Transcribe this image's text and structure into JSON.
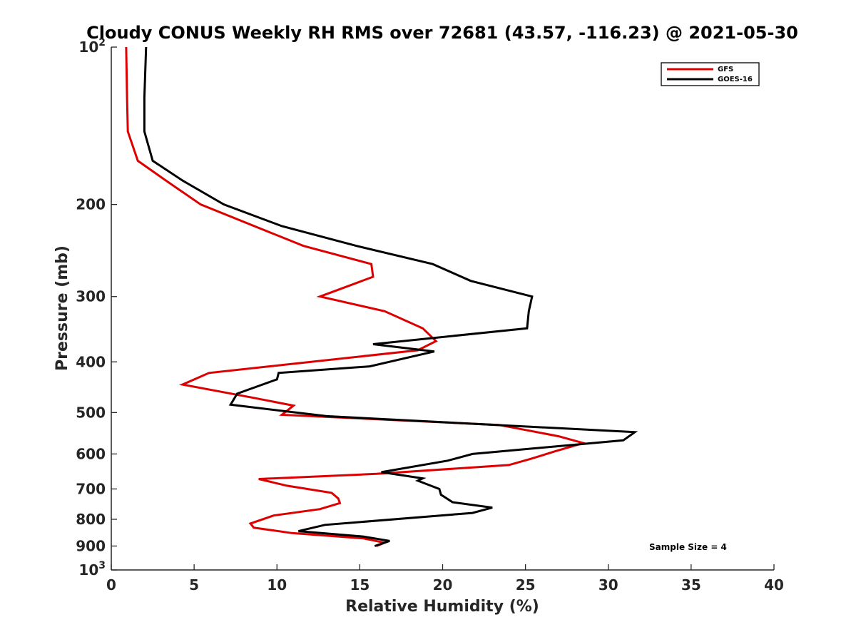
{
  "chart_data": {
    "type": "line",
    "title": "Cloudy CONUS Weekly RH RMS over 72681 (43.57, -116.23) @ 2021-05-30",
    "xlabel": "Relative Humidity (%)",
    "ylabel": "Pressure (mb)",
    "xlim": [
      0,
      40
    ],
    "ylim": [
      100,
      1000
    ],
    "y_scale": "log",
    "y_reversed": true,
    "x_ticks": [
      "0",
      "5",
      "10",
      "15",
      "20",
      "25",
      "30",
      "35",
      "40"
    ],
    "y_ticks": [
      {
        "value": 100,
        "base": "10",
        "exp": "2"
      },
      {
        "value": 200,
        "label": "200"
      },
      {
        "value": 300,
        "label": "300"
      },
      {
        "value": 400,
        "label": "400"
      },
      {
        "value": 500,
        "label": "500"
      },
      {
        "value": 600,
        "label": "600"
      },
      {
        "value": 700,
        "label": "700"
      },
      {
        "value": 800,
        "label": "800"
      },
      {
        "value": 900,
        "label": "900"
      },
      {
        "value": 1000,
        "base": "10",
        "exp": "3"
      }
    ],
    "legend_position": "top-right",
    "annotation": "Sample Size = 4",
    "series": [
      {
        "name": "GFS",
        "color": "#dd0000",
        "points": [
          [
            0.9,
            100
          ],
          [
            0.95,
            125
          ],
          [
            1.0,
            145
          ],
          [
            1.6,
            165
          ],
          [
            3.3,
            180
          ],
          [
            5.4,
            200
          ],
          [
            11.6,
            240
          ],
          [
            15.7,
            260
          ],
          [
            15.8,
            275
          ],
          [
            12.6,
            300
          ],
          [
            16.5,
            320
          ],
          [
            18.8,
            345
          ],
          [
            19.6,
            365
          ],
          [
            18.5,
            380
          ],
          [
            5.9,
            420
          ],
          [
            4.3,
            442
          ],
          [
            8.5,
            468
          ],
          [
            11.0,
            485
          ],
          [
            10.3,
            505
          ],
          [
            23.4,
            528
          ],
          [
            27.0,
            555
          ],
          [
            28.5,
            572
          ],
          [
            26.8,
            593
          ],
          [
            25.4,
            612
          ],
          [
            24.0,
            630
          ],
          [
            16.0,
            655
          ],
          [
            8.9,
            670
          ],
          [
            10.6,
            690
          ],
          [
            13.3,
            712
          ],
          [
            13.7,
            730
          ],
          [
            13.8,
            745
          ],
          [
            12.6,
            765
          ],
          [
            9.8,
            787
          ],
          [
            8.4,
            815
          ],
          [
            8.6,
            830
          ],
          [
            10.9,
            850
          ],
          [
            15.2,
            870
          ],
          [
            16.5,
            887
          ],
          [
            16.0,
            900
          ]
        ]
      },
      {
        "name": "GOES-16",
        "color": "#000000",
        "points": [
          [
            2.1,
            100
          ],
          [
            2.0,
            125
          ],
          [
            2.0,
            145
          ],
          [
            2.5,
            165
          ],
          [
            4.3,
            180
          ],
          [
            6.8,
            200
          ],
          [
            10.3,
            220
          ],
          [
            14.8,
            240
          ],
          [
            19.4,
            260
          ],
          [
            21.7,
            280
          ],
          [
            25.4,
            300
          ],
          [
            25.2,
            320
          ],
          [
            25.1,
            345
          ],
          [
            15.8,
            370
          ],
          [
            19.5,
            382
          ],
          [
            15.6,
            408
          ],
          [
            10.1,
            420
          ],
          [
            10.0,
            432
          ],
          [
            7.6,
            460
          ],
          [
            7.2,
            483
          ],
          [
            13.0,
            508
          ],
          [
            31.6,
            545
          ],
          [
            30.9,
            565
          ],
          [
            21.8,
            600
          ],
          [
            20.3,
            618
          ],
          [
            16.3,
            650
          ],
          [
            18.8,
            668
          ],
          [
            18.5,
            675
          ],
          [
            19.8,
            700
          ],
          [
            19.9,
            718
          ],
          [
            20.6,
            742
          ],
          [
            23.0,
            760
          ],
          [
            21.8,
            778
          ],
          [
            12.9,
            820
          ],
          [
            11.3,
            843
          ],
          [
            15.2,
            863
          ],
          [
            16.8,
            880
          ],
          [
            15.9,
            900
          ]
        ]
      }
    ]
  }
}
